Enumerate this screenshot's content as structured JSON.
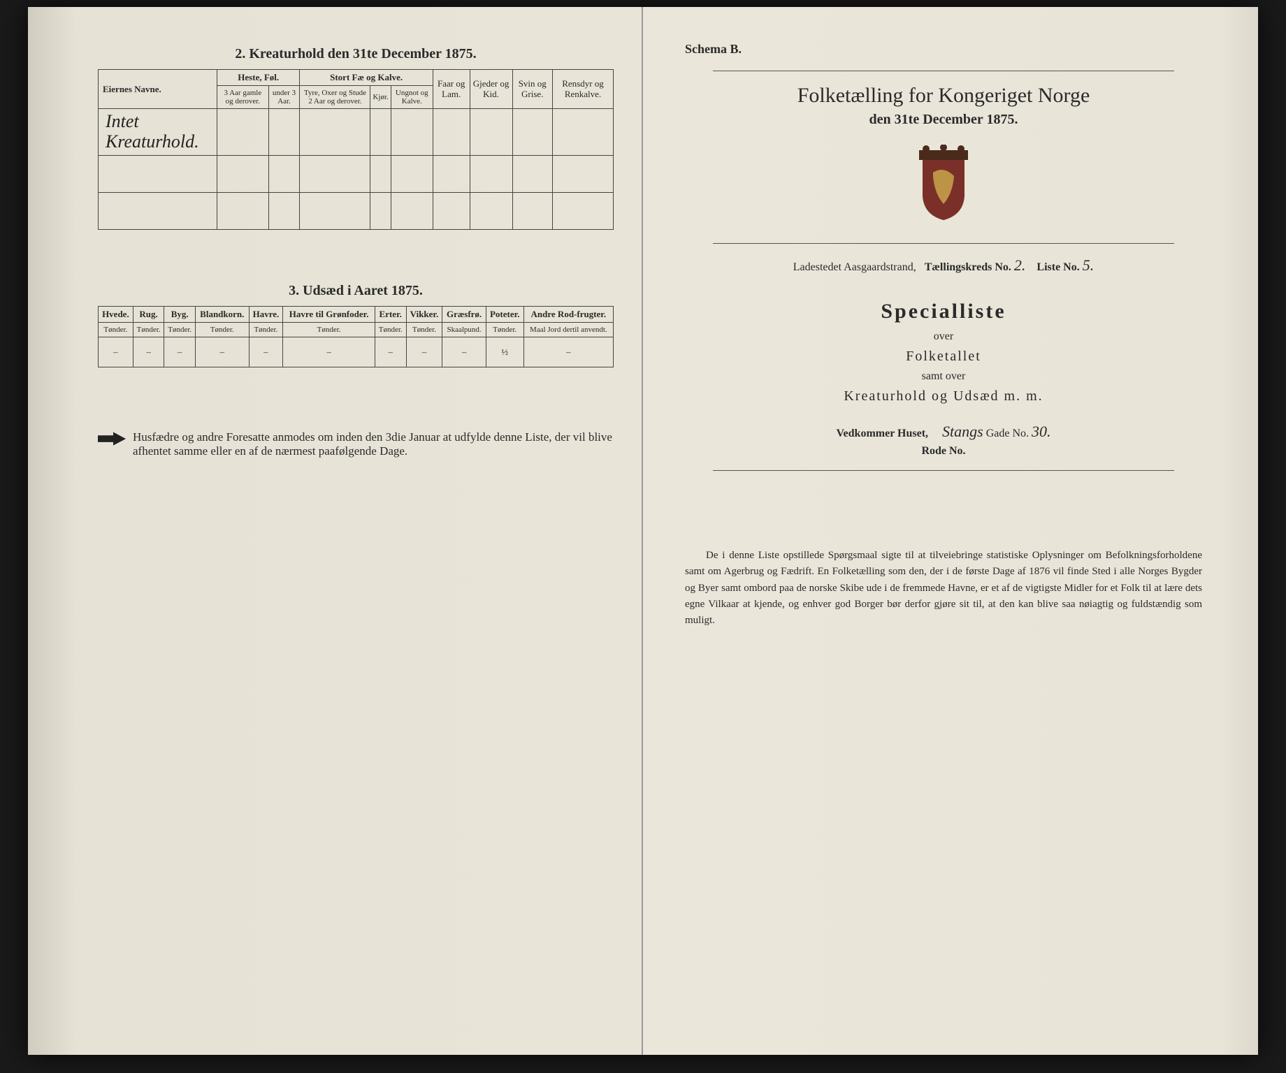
{
  "left": {
    "section2": {
      "title": "2. Kreaturhold den 31te December 1875.",
      "headers": {
        "name": "Eiernes Navne.",
        "group_heste": "Heste, Føl.",
        "heste_a": "3 Aar gamle og derover.",
        "heste_b": "under 3 Aar.",
        "group_stort": "Stort Fæ og Kalve.",
        "stort_a": "Tyre, Oxer og Stude 2 Aar og derover.",
        "stort_b": "Kjør.",
        "stort_c": "Ungnot og Kalve.",
        "faar": "Faar og Lam.",
        "gjeder": "Gjeder og Kid.",
        "svin": "Svin og Grise.",
        "rensdyr": "Rensdyr og Renkalve."
      },
      "handwritten_row": "Intet Kreaturhold."
    },
    "section3": {
      "title": "3. Udsæd i Aaret 1875.",
      "cols": [
        {
          "h": "Hvede.",
          "s": "Tønder."
        },
        {
          "h": "Rug.",
          "s": "Tønder."
        },
        {
          "h": "Byg.",
          "s": "Tønder."
        },
        {
          "h": "Blandkorn.",
          "s": "Tønder."
        },
        {
          "h": "Havre.",
          "s": "Tønder."
        },
        {
          "h": "Havre til Grønfoder.",
          "s": "Tønder."
        },
        {
          "h": "Erter.",
          "s": "Tønder."
        },
        {
          "h": "Vikker.",
          "s": "Tønder."
        },
        {
          "h": "Græsfrø.",
          "s": "Skaalpund."
        },
        {
          "h": "Poteter.",
          "s": "Tønder."
        },
        {
          "h": "Andre Rod-frugter.",
          "s": "Maal Jord dertil anvendt."
        }
      ],
      "vals": [
        "–",
        "–",
        "–",
        "–",
        "–",
        "–",
        "–",
        "–",
        "–",
        "½",
        "–"
      ]
    },
    "footnote": "Husfædre og andre Foresatte anmodes om inden den 3die Januar at udfylde denne Liste, der vil blive afhentet samme eller en af de nærmest paafølgende Dage."
  },
  "right": {
    "schema": "Schema B.",
    "title": "Folketælling for Kongeriget Norge",
    "subtitle": "den 31te December 1875.",
    "coat_color": "#7a3028",
    "id": {
      "place_label": "Ladestedet Aasgaardstrand,",
      "kreds_label": "Tællingskreds No.",
      "kreds_val": "2.",
      "liste_label": "Liste No.",
      "liste_val": "5."
    },
    "spec": "Specialliste",
    "over": "over",
    "folketallet": "Folketallet",
    "samt": "samt over",
    "kreatur": "Kreaturhold og Udsæd m. m.",
    "house": {
      "label": "Vedkommer Huset,",
      "street": "Stangs",
      "gade_label": "Gade No.",
      "gade_val": "30.",
      "rode_label": "Rode No."
    },
    "paragraph": "De i denne Liste opstillede Spørgsmaal sigte til at tilveiebringe statistiske Oplysninger om Befolkningsforholdene samt om Agerbrug og Fædrift. En Folketælling som den, der i de første Dage af 1876 vil finde Sted i alle Norges Bygder og Byer samt ombord paa de norske Skibe ude i de fremmede Havne, er et af de vigtigste Midler for et Folk til at lære dets egne Vilkaar at kjende, og enhver god Borger bør derfor gjøre sit til, at den kan blive saa nøiagtig og fuldstændig som muligt."
  }
}
